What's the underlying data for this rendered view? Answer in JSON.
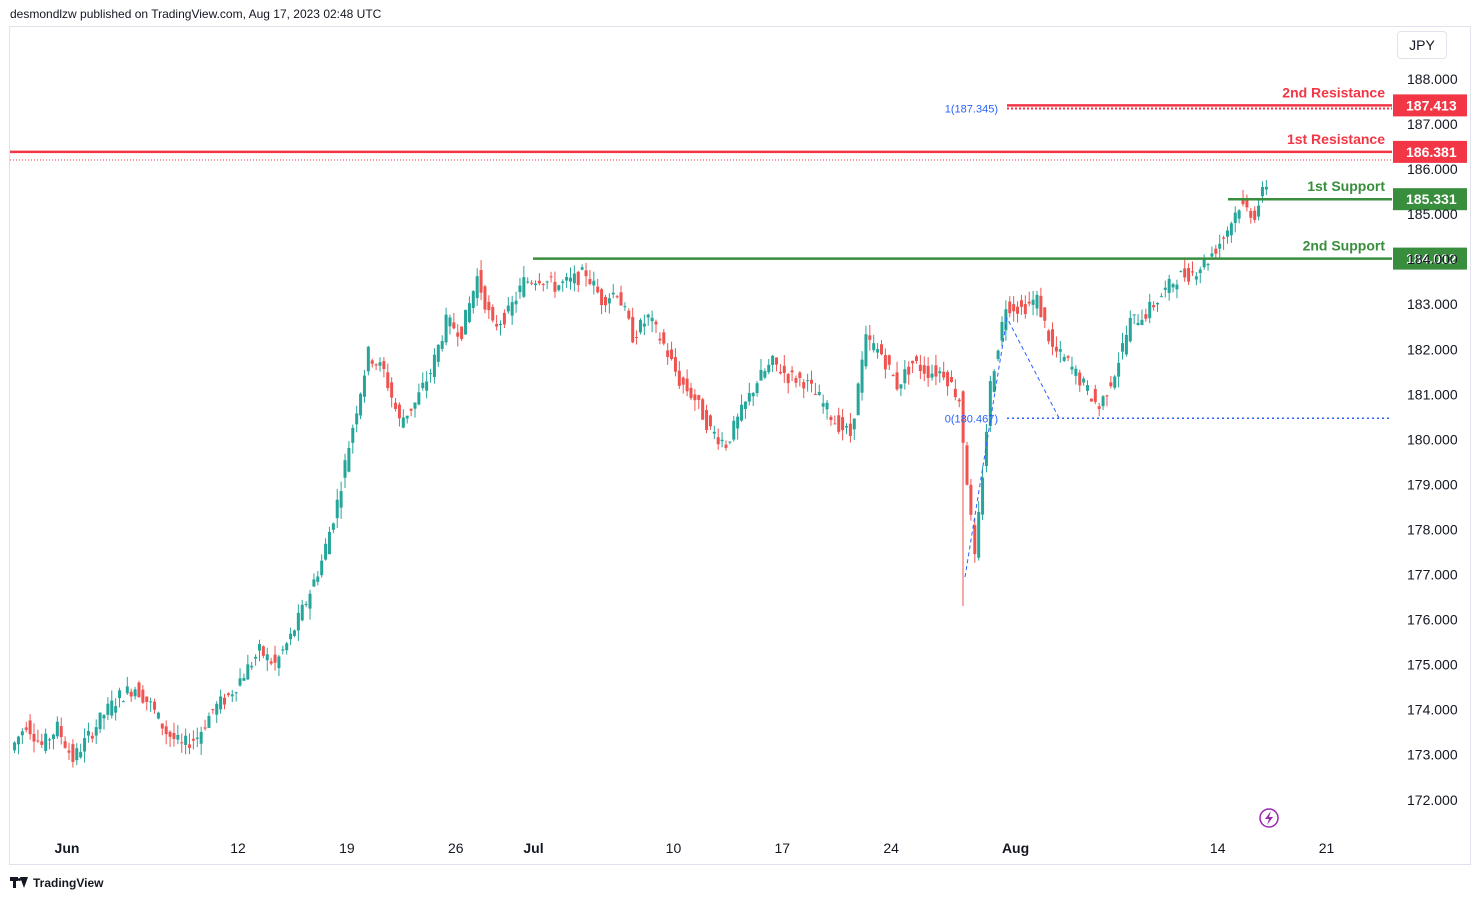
{
  "header": {
    "published_text": "desmondlzw published on TradingView.com, Aug 17, 2023 02:48 UTC"
  },
  "currency_label": "JPY",
  "footer": {
    "brand": "TradingView"
  },
  "icons": {
    "lightning": "lightning-icon",
    "logo": "tradingview-logo-icon"
  },
  "colors": {
    "up": "#26a69a",
    "down": "#ef5350",
    "resistance": "#f23645",
    "support": "#388e3c",
    "fib": "#2962ff",
    "flash": "#9c27b0"
  },
  "chart_data": {
    "type": "candlestick",
    "title": "",
    "xlabel": "",
    "ylabel": "",
    "ylim": [
      171.4,
      188.7
    ],
    "y_ticks": [
      188.0,
      187.0,
      186.0,
      185.0,
      184.0,
      183.0,
      182.0,
      181.0,
      180.0,
      179.0,
      178.0,
      177.0,
      176.0,
      175.0,
      174.0,
      173.0,
      172.0
    ],
    "y_tick_labels": [
      "188.000",
      "187.000",
      "186.000",
      "185.000",
      "184.000",
      "183.000",
      "182.000",
      "181.000",
      "180.000",
      "179.000",
      "178.000",
      "177.000",
      "176.000",
      "175.000",
      "174.000",
      "173.000",
      "172.000"
    ],
    "x_ticks": [
      {
        "label": "Jun",
        "day": 0,
        "bold": true
      },
      {
        "label": "12",
        "day": 11,
        "bold": false
      },
      {
        "label": "19",
        "day": 18,
        "bold": false
      },
      {
        "label": "26",
        "day": 25,
        "bold": false
      },
      {
        "label": "Jul",
        "day": 30,
        "bold": true
      },
      {
        "label": "10",
        "day": 39,
        "bold": false
      },
      {
        "label": "17",
        "day": 46,
        "bold": false
      },
      {
        "label": "24",
        "day": 53,
        "bold": false
      },
      {
        "label": "Aug",
        "day": 61,
        "bold": true
      },
      {
        "label": "14",
        "day": 74,
        "bold": false
      },
      {
        "label": "21",
        "day": 81,
        "bold": false
      }
    ],
    "series": [
      {
        "name": "",
        "points": [
          [
            -3.5,
            173.1
          ],
          [
            -2.5,
            173.7
          ],
          [
            -1.5,
            173.2
          ],
          [
            -0.5,
            173.6
          ],
          [
            0.5,
            172.9
          ],
          [
            1.5,
            173.4
          ],
          [
            2.5,
            173.9
          ],
          [
            3.5,
            174.3
          ],
          [
            4.5,
            174.5
          ],
          [
            5.5,
            174.1
          ],
          [
            6.5,
            173.5
          ],
          [
            7.5,
            173.2
          ],
          [
            8.5,
            173.4
          ],
          [
            9.5,
            174.0
          ],
          [
            10.5,
            174.3
          ],
          [
            11.5,
            174.8
          ],
          [
            12.5,
            175.3
          ],
          [
            13.5,
            175.0
          ],
          [
            14.5,
            175.6
          ],
          [
            15.5,
            176.4
          ],
          [
            16.5,
            177.3
          ],
          [
            17.5,
            178.6
          ],
          [
            18.5,
            180.3
          ],
          [
            19.5,
            181.9
          ],
          [
            20.5,
            181.5
          ],
          [
            21.5,
            180.4
          ],
          [
            22.5,
            180.8
          ],
          [
            23.5,
            181.5
          ],
          [
            24.5,
            182.6
          ],
          [
            25.5,
            182.4
          ],
          [
            26.5,
            183.6
          ],
          [
            27.5,
            182.5
          ],
          [
            28.5,
            182.8
          ],
          [
            29.5,
            183.5
          ],
          [
            30.5,
            183.6
          ],
          [
            31.5,
            183.4
          ],
          [
            32.5,
            183.5
          ],
          [
            33.5,
            183.7
          ],
          [
            34.5,
            183.1
          ],
          [
            35.5,
            183.3
          ],
          [
            36.5,
            182.3
          ],
          [
            37.5,
            182.7
          ],
          [
            38.5,
            182.1
          ],
          [
            39.5,
            181.3
          ],
          [
            40.5,
            180.9
          ],
          [
            41.5,
            180.2
          ],
          [
            42.5,
            179.9
          ],
          [
            43.5,
            180.6
          ],
          [
            44.5,
            181.3
          ],
          [
            45.5,
            181.7
          ],
          [
            46.5,
            181.4
          ],
          [
            47.5,
            181.3
          ],
          [
            48.5,
            180.9
          ],
          [
            49.5,
            180.4
          ],
          [
            50.5,
            180.1
          ],
          [
            51.5,
            182.2
          ],
          [
            52.5,
            181.9
          ],
          [
            53.5,
            181.2
          ],
          [
            54.5,
            181.7
          ],
          [
            55.5,
            181.5
          ],
          [
            56.5,
            181.5
          ],
          [
            57.5,
            180.9
          ],
          [
            58.5,
            177.3
          ],
          [
            59.5,
            181.2
          ],
          [
            60.5,
            183.0
          ],
          [
            61.5,
            182.9
          ],
          [
            62.5,
            183.1
          ],
          [
            63.5,
            182.0
          ],
          [
            64.5,
            181.7
          ],
          [
            65.5,
            181.2
          ],
          [
            66.5,
            180.7
          ],
          [
            67.5,
            181.5
          ],
          [
            68.5,
            182.6
          ],
          [
            69.5,
            182.8
          ],
          [
            70.5,
            183.2
          ],
          [
            71.5,
            183.6
          ],
          [
            72.5,
            183.7
          ],
          [
            73.5,
            184.0
          ],
          [
            74.5,
            184.5
          ],
          [
            75.5,
            185.2
          ],
          [
            76.5,
            185.0
          ],
          [
            77.5,
            185.9
          ],
          [
            78.0,
            186.3
          ],
          [
            78.5,
            186.25
          ]
        ]
      }
    ],
    "levels": [
      {
        "label": "2nd Resistance",
        "value": 187.413,
        "value_label": "187.413",
        "kind": "resistance"
      },
      {
        "label": "1st Resistance",
        "value": 186.381,
        "value_label": "186.381",
        "kind": "resistance"
      },
      {
        "label": "1st Support",
        "value": 185.331,
        "value_label": "185.331",
        "kind": "support"
      },
      {
        "label": "2nd Support",
        "value": 184.012,
        "value_label": "184.012",
        "kind": "support"
      }
    ],
    "fib": {
      "level1_label": "1(187.345)",
      "level1_value": 187.345,
      "level0_label": "0(180.467)",
      "level0_value": 180.467
    },
    "last_price": 186.2
  }
}
